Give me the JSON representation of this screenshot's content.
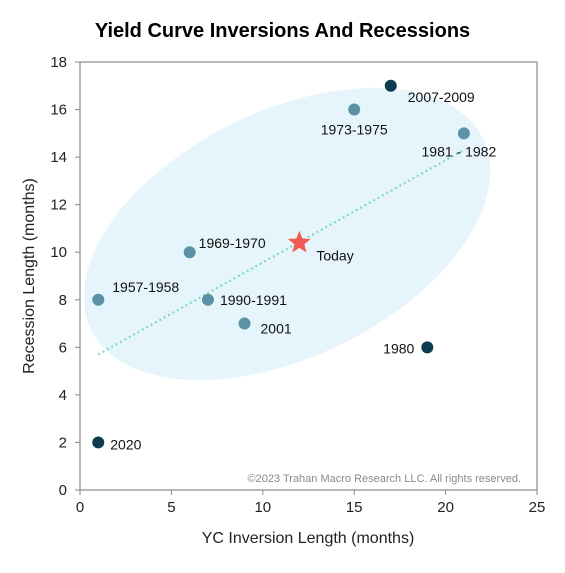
{
  "chart_data": {
    "type": "scatter",
    "title": "Yield Curve Inversions And Recessions",
    "xlabel": "YC Inversion Length (months)",
    "ylabel": "Recession Length (months)",
    "xlim": [
      0,
      25
    ],
    "ylim": [
      0,
      18
    ],
    "xticks": [
      0,
      5,
      10,
      15,
      20,
      25
    ],
    "yticks": [
      0,
      2,
      4,
      6,
      8,
      10,
      12,
      14,
      16,
      18
    ],
    "grid": false,
    "points": [
      {
        "label": "1957-1958",
        "x": 1,
        "y": 8,
        "group": "cluster"
      },
      {
        "label": "1969-1970",
        "x": 6,
        "y": 10,
        "group": "cluster"
      },
      {
        "label": "1990-1991",
        "x": 7,
        "y": 8,
        "group": "cluster"
      },
      {
        "label": "2001",
        "x": 9,
        "y": 7,
        "group": "cluster"
      },
      {
        "label": "1973-1975",
        "x": 15,
        "y": 16,
        "group": "cluster"
      },
      {
        "label": "1981 - 1982",
        "x": 21,
        "y": 15,
        "group": "cluster"
      },
      {
        "label": "2007-2009",
        "x": 17,
        "y": 17,
        "group": "outlier"
      },
      {
        "label": "1980",
        "x": 19,
        "y": 6,
        "group": "outlier"
      },
      {
        "label": "2020",
        "x": 1,
        "y": 2,
        "group": "outlier"
      }
    ],
    "highlight": {
      "label": "Today",
      "x": 12,
      "y": 10.4
    },
    "trendline": {
      "x": [
        1,
        21
      ],
      "y": [
        5.7,
        14.3
      ]
    },
    "copyright": "©2023 Trahan Macro Research LLC. All rights reserved.",
    "colors": {
      "cluster": "#5b93a4",
      "outlier": "#0d3b4f",
      "highlight": "#ef5b50",
      "trendline": "#7fd9c4",
      "ellipse": "#e6f5fb",
      "frame": "#888888"
    }
  }
}
